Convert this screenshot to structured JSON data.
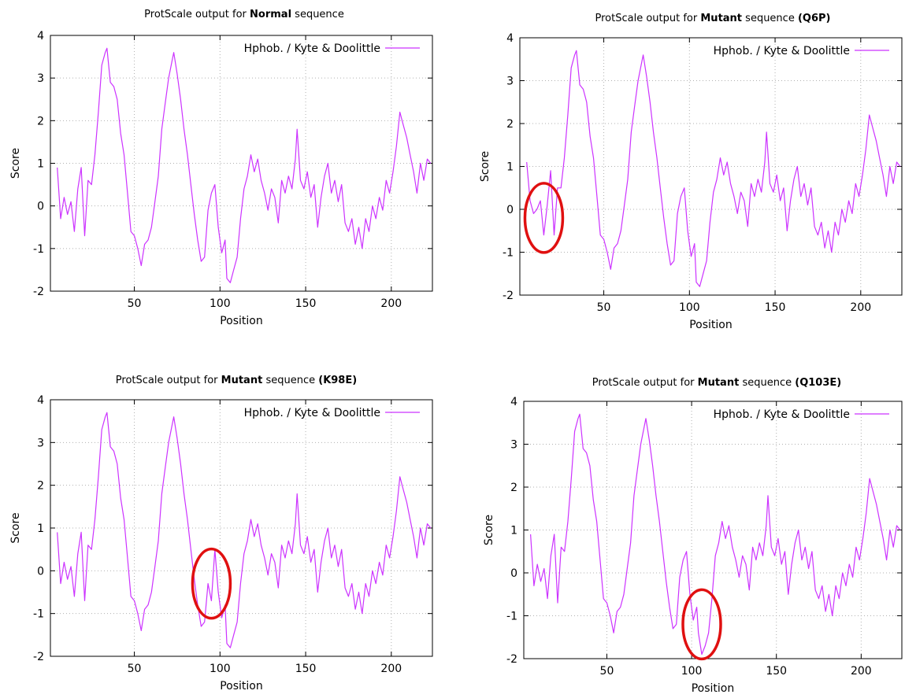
{
  "chart_data": [
    {
      "type": "line",
      "title": {
        "prefix": "ProtScale output for",
        "bold": "Normal",
        "suffix": "sequence",
        "tag": ""
      },
      "xlabel": "Position",
      "ylabel": "Score",
      "xlim": [
        1,
        224
      ],
      "ylim": [
        -2,
        4
      ],
      "xticks": [
        50,
        100,
        150,
        200
      ],
      "yticks": [
        -2,
        -1,
        0,
        1,
        2,
        3,
        4
      ],
      "grid": true,
      "legend_position": "top-right",
      "series": [
        {
          "name": "Hphob. / Kyte & Doolittle",
          "color": "#cc33ff",
          "x": [
            5,
            7,
            9,
            11,
            13,
            15,
            17,
            19,
            21,
            23,
            25,
            27,
            29,
            31,
            33,
            34,
            36,
            38,
            40,
            42,
            44,
            46,
            48,
            50,
            52,
            54,
            56,
            58,
            60,
            62,
            64,
            66,
            68,
            70,
            72,
            73,
            75,
            77,
            79,
            81,
            83,
            85,
            87,
            89,
            91,
            93,
            95,
            97,
            99,
            101,
            103,
            104,
            106,
            108,
            110,
            112,
            114,
            116,
            118,
            120,
            122,
            124,
            126,
            128,
            130,
            132,
            134,
            136,
            138,
            140,
            142,
            144,
            145,
            147,
            149,
            151,
            153,
            155,
            157,
            159,
            161,
            163,
            165,
            167,
            169,
            171,
            173,
            175,
            177,
            179,
            181,
            183,
            185,
            187,
            189,
            191,
            193,
            195,
            197,
            199,
            201,
            203,
            205,
            207,
            209,
            211,
            213,
            215,
            217,
            219,
            221,
            223
          ],
          "values": [
            0.9,
            -0.3,
            0.2,
            -0.2,
            0.1,
            -0.6,
            0.4,
            0.9,
            -0.7,
            0.6,
            0.5,
            1.2,
            2.2,
            3.3,
            3.6,
            3.7,
            2.9,
            2.8,
            2.5,
            1.7,
            1.2,
            0.3,
            -0.6,
            -0.7,
            -1.0,
            -1.4,
            -0.9,
            -0.8,
            -0.5,
            0.1,
            0.7,
            1.8,
            2.4,
            3.0,
            3.4,
            3.6,
            3.1,
            2.5,
            1.8,
            1.2,
            0.5,
            -0.2,
            -0.8,
            -1.3,
            -1.2,
            -0.1,
            0.3,
            0.5,
            -0.5,
            -1.1,
            -0.8,
            -1.7,
            -1.8,
            -1.5,
            -1.2,
            -0.3,
            0.4,
            0.7,
            1.2,
            0.8,
            1.1,
            0.6,
            0.3,
            -0.1,
            0.4,
            0.2,
            -0.4,
            0.6,
            0.3,
            0.7,
            0.4,
            1.1,
            1.8,
            0.6,
            0.4,
            0.8,
            0.2,
            0.5,
            -0.5,
            0.2,
            0.7,
            1.0,
            0.3,
            0.6,
            0.1,
            0.5,
            -0.4,
            -0.6,
            -0.3,
            -0.9,
            -0.5,
            -1.0,
            -0.3,
            -0.6,
            0.0,
            -0.3,
            0.2,
            -0.1,
            0.6,
            0.3,
            0.8,
            1.4,
            2.2,
            1.9,
            1.6,
            1.2,
            0.8,
            0.3,
            1.0,
            0.6,
            1.1,
            1.0
          ]
        }
      ]
    },
    {
      "type": "line",
      "title": {
        "prefix": "ProtScale output for",
        "bold": "Mutant",
        "suffix": "sequence",
        "tag": "(Q6P)"
      },
      "xlabel": "Position",
      "ylabel": "Score",
      "xlim": [
        1,
        224
      ],
      "ylim": [
        -2,
        4
      ],
      "xticks": [
        50,
        100,
        150,
        200
      ],
      "yticks": [
        -2,
        -1,
        0,
        1,
        2,
        3,
        4
      ],
      "grid": true,
      "legend_position": "top-right",
      "highlight": {
        "x": 15,
        "y": -0.2
      },
      "series": [
        {
          "name": "Hphob. / Kyte & Doolittle",
          "color": "#cc33ff",
          "x": [
            5,
            7,
            9,
            11,
            13,
            15,
            17,
            19,
            21,
            23,
            25,
            27,
            29,
            31,
            33,
            34,
            36,
            38,
            40,
            42,
            44,
            46,
            48,
            50,
            52,
            54,
            56,
            58,
            60,
            62,
            64,
            66,
            68,
            70,
            72,
            73,
            75,
            77,
            79,
            81,
            83,
            85,
            87,
            89,
            91,
            93,
            95,
            97,
            99,
            101,
            103,
            104,
            106,
            108,
            110,
            112,
            114,
            116,
            118,
            120,
            122,
            124,
            126,
            128,
            130,
            132,
            134,
            136,
            138,
            140,
            142,
            144,
            145,
            147,
            149,
            151,
            153,
            155,
            157,
            159,
            161,
            163,
            165,
            167,
            169,
            171,
            173,
            175,
            177,
            179,
            181,
            183,
            185,
            187,
            189,
            191,
            193,
            195,
            197,
            199,
            201,
            203,
            205,
            207,
            209,
            211,
            213,
            215,
            217,
            219,
            221,
            223
          ],
          "values": [
            1.1,
            0.2,
            -0.1,
            0.0,
            0.2,
            -0.6,
            0.1,
            0.9,
            -0.6,
            0.5,
            0.5,
            1.2,
            2.2,
            3.3,
            3.6,
            3.7,
            2.9,
            2.8,
            2.5,
            1.7,
            1.2,
            0.3,
            -0.6,
            -0.7,
            -1.0,
            -1.4,
            -0.9,
            -0.8,
            -0.5,
            0.1,
            0.7,
            1.8,
            2.4,
            3.0,
            3.4,
            3.6,
            3.1,
            2.5,
            1.8,
            1.2,
            0.5,
            -0.2,
            -0.8,
            -1.3,
            -1.2,
            -0.1,
            0.3,
            0.5,
            -0.5,
            -1.1,
            -0.8,
            -1.7,
            -1.8,
            -1.5,
            -1.2,
            -0.3,
            0.4,
            0.7,
            1.2,
            0.8,
            1.1,
            0.6,
            0.3,
            -0.1,
            0.4,
            0.2,
            -0.4,
            0.6,
            0.3,
            0.7,
            0.4,
            1.1,
            1.8,
            0.6,
            0.4,
            0.8,
            0.2,
            0.5,
            -0.5,
            0.2,
            0.7,
            1.0,
            0.3,
            0.6,
            0.1,
            0.5,
            -0.4,
            -0.6,
            -0.3,
            -0.9,
            -0.5,
            -1.0,
            -0.3,
            -0.6,
            0.0,
            -0.3,
            0.2,
            -0.1,
            0.6,
            0.3,
            0.8,
            1.4,
            2.2,
            1.9,
            1.6,
            1.2,
            0.8,
            0.3,
            1.0,
            0.6,
            1.1,
            1.0
          ]
        }
      ]
    },
    {
      "type": "line",
      "title": {
        "prefix": "ProtScale output for",
        "bold": "Mutant",
        "suffix": "sequence",
        "tag": "(K98E)"
      },
      "xlabel": "Position",
      "ylabel": "Score",
      "xlim": [
        1,
        224
      ],
      "ylim": [
        -2,
        4
      ],
      "xticks": [
        50,
        100,
        150,
        200
      ],
      "yticks": [
        -2,
        -1,
        0,
        1,
        2,
        3,
        4
      ],
      "grid": true,
      "legend_position": "top-right",
      "highlight": {
        "x": 95,
        "y": -0.3
      },
      "series": [
        {
          "name": "Hphob. / Kyte & Doolittle",
          "color": "#cc33ff",
          "x": [
            5,
            7,
            9,
            11,
            13,
            15,
            17,
            19,
            21,
            23,
            25,
            27,
            29,
            31,
            33,
            34,
            36,
            38,
            40,
            42,
            44,
            46,
            48,
            50,
            52,
            54,
            56,
            58,
            60,
            62,
            64,
            66,
            68,
            70,
            72,
            73,
            75,
            77,
            79,
            81,
            83,
            85,
            87,
            89,
            91,
            93,
            95,
            97,
            99,
            101,
            103,
            104,
            106,
            108,
            110,
            112,
            114,
            116,
            118,
            120,
            122,
            124,
            126,
            128,
            130,
            132,
            134,
            136,
            138,
            140,
            142,
            144,
            145,
            147,
            149,
            151,
            153,
            155,
            157,
            159,
            161,
            163,
            165,
            167,
            169,
            171,
            173,
            175,
            177,
            179,
            181,
            183,
            185,
            187,
            189,
            191,
            193,
            195,
            197,
            199,
            201,
            203,
            205,
            207,
            209,
            211,
            213,
            215,
            217,
            219,
            221,
            223
          ],
          "values": [
            0.9,
            -0.3,
            0.2,
            -0.2,
            0.1,
            -0.6,
            0.4,
            0.9,
            -0.7,
            0.6,
            0.5,
            1.2,
            2.2,
            3.3,
            3.6,
            3.7,
            2.9,
            2.8,
            2.5,
            1.7,
            1.2,
            0.3,
            -0.6,
            -0.7,
            -1.0,
            -1.4,
            -0.9,
            -0.8,
            -0.5,
            0.1,
            0.7,
            1.8,
            2.4,
            3.0,
            3.4,
            3.6,
            3.1,
            2.5,
            1.8,
            1.2,
            0.5,
            -0.2,
            -0.8,
            -1.3,
            -1.2,
            -0.3,
            -0.7,
            0.5,
            -0.5,
            -1.1,
            -0.8,
            -1.7,
            -1.8,
            -1.5,
            -1.2,
            -0.3,
            0.4,
            0.7,
            1.2,
            0.8,
            1.1,
            0.6,
            0.3,
            -0.1,
            0.4,
            0.2,
            -0.4,
            0.6,
            0.3,
            0.7,
            0.4,
            1.1,
            1.8,
            0.6,
            0.4,
            0.8,
            0.2,
            0.5,
            -0.5,
            0.2,
            0.7,
            1.0,
            0.3,
            0.6,
            0.1,
            0.5,
            -0.4,
            -0.6,
            -0.3,
            -0.9,
            -0.5,
            -1.0,
            -0.3,
            -0.6,
            0.0,
            -0.3,
            0.2,
            -0.1,
            0.6,
            0.3,
            0.8,
            1.4,
            2.2,
            1.9,
            1.6,
            1.2,
            0.8,
            0.3,
            1.0,
            0.6,
            1.1,
            1.0
          ]
        }
      ]
    },
    {
      "type": "line",
      "title": {
        "prefix": "ProtScale output for",
        "bold": "Mutant",
        "suffix": "sequence",
        "tag": "(Q103E)"
      },
      "xlabel": "Position",
      "ylabel": "Score",
      "xlim": [
        1,
        224
      ],
      "ylim": [
        -2,
        4
      ],
      "xticks": [
        50,
        100,
        150,
        200
      ],
      "yticks": [
        -2,
        -1,
        0,
        1,
        2,
        3,
        4
      ],
      "grid": true,
      "legend_position": "top-right",
      "highlight": {
        "x": 106,
        "y": -1.2
      },
      "series": [
        {
          "name": "Hphob. / Kyte & Doolittle",
          "color": "#cc33ff",
          "x": [
            5,
            7,
            9,
            11,
            13,
            15,
            17,
            19,
            21,
            23,
            25,
            27,
            29,
            31,
            33,
            34,
            36,
            38,
            40,
            42,
            44,
            46,
            48,
            50,
            52,
            54,
            56,
            58,
            60,
            62,
            64,
            66,
            68,
            70,
            72,
            73,
            75,
            77,
            79,
            81,
            83,
            85,
            87,
            89,
            91,
            93,
            95,
            97,
            99,
            101,
            103,
            104,
            106,
            108,
            110,
            112,
            114,
            116,
            118,
            120,
            122,
            124,
            126,
            128,
            130,
            132,
            134,
            136,
            138,
            140,
            142,
            144,
            145,
            147,
            149,
            151,
            153,
            155,
            157,
            159,
            161,
            163,
            165,
            167,
            169,
            171,
            173,
            175,
            177,
            179,
            181,
            183,
            185,
            187,
            189,
            191,
            193,
            195,
            197,
            199,
            201,
            203,
            205,
            207,
            209,
            211,
            213,
            215,
            217,
            219,
            221,
            223
          ],
          "values": [
            0.9,
            -0.3,
            0.2,
            -0.2,
            0.1,
            -0.6,
            0.4,
            0.9,
            -0.7,
            0.6,
            0.5,
            1.2,
            2.2,
            3.3,
            3.6,
            3.7,
            2.9,
            2.8,
            2.5,
            1.7,
            1.2,
            0.3,
            -0.6,
            -0.7,
            -1.0,
            -1.4,
            -0.9,
            -0.8,
            -0.5,
            0.1,
            0.7,
            1.8,
            2.4,
            3.0,
            3.4,
            3.6,
            3.1,
            2.5,
            1.8,
            1.2,
            0.5,
            -0.2,
            -0.8,
            -1.3,
            -1.2,
            -0.1,
            0.3,
            0.5,
            -0.5,
            -1.1,
            -0.8,
            -1.4,
            -1.9,
            -1.7,
            -1.4,
            -0.6,
            0.4,
            0.7,
            1.2,
            0.8,
            1.1,
            0.6,
            0.3,
            -0.1,
            0.4,
            0.2,
            -0.4,
            0.6,
            0.3,
            0.7,
            0.4,
            1.1,
            1.8,
            0.6,
            0.4,
            0.8,
            0.2,
            0.5,
            -0.5,
            0.2,
            0.7,
            1.0,
            0.3,
            0.6,
            0.1,
            0.5,
            -0.4,
            -0.6,
            -0.3,
            -0.9,
            -0.5,
            -1.0,
            -0.3,
            -0.6,
            0.0,
            -0.3,
            0.2,
            -0.1,
            0.6,
            0.3,
            0.8,
            1.4,
            2.2,
            1.9,
            1.6,
            1.2,
            0.8,
            0.3,
            1.0,
            0.6,
            1.1,
            1.0
          ]
        }
      ]
    }
  ]
}
